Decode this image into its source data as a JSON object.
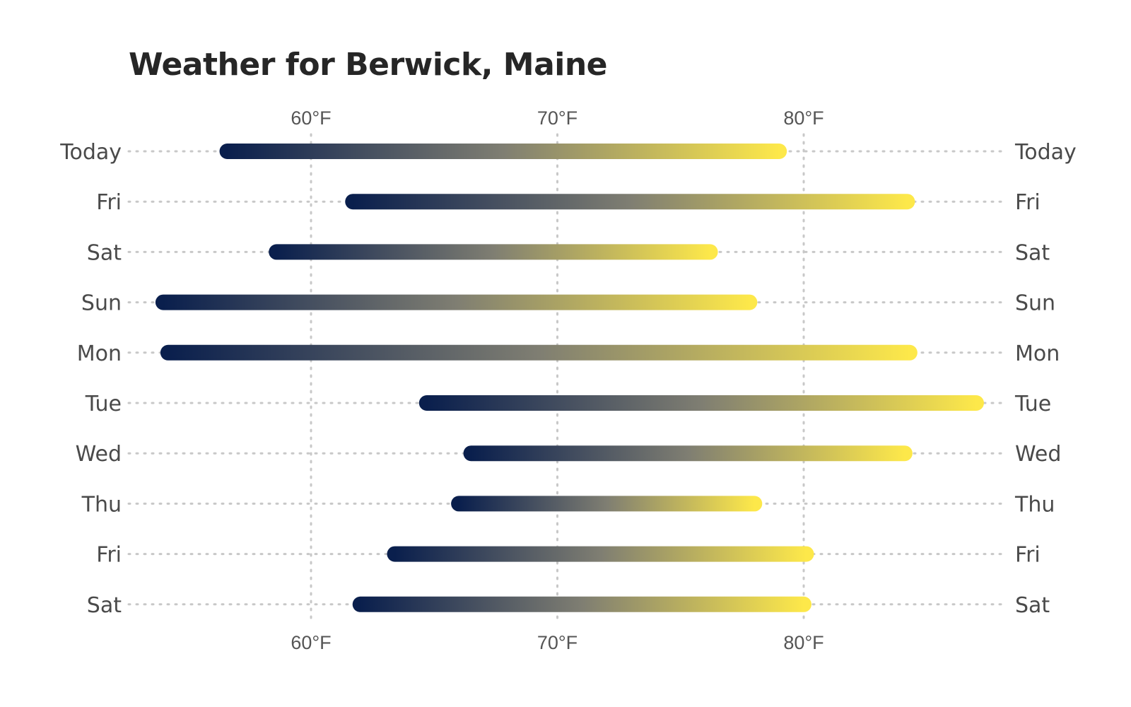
{
  "chart_data": {
    "type": "range-bar",
    "title": "Weather for Berwick, Maine",
    "unit": "°F",
    "xlim": [
      52,
      88
    ],
    "ticks": [
      {
        "value": 60,
        "label": "60°F"
      },
      {
        "value": 70,
        "label": "70°F"
      },
      {
        "value": 80,
        "label": "80°F"
      }
    ],
    "grid": true,
    "colors": {
      "low": "#0a1f4d",
      "mid": "#7f7e72",
      "high": "#fde84a"
    },
    "rows": [
      {
        "label": "Today",
        "low": 56.6,
        "high": 79.0
      },
      {
        "label": "Fri",
        "low": 61.7,
        "high": 84.2
      },
      {
        "label": "Sat",
        "low": 58.6,
        "high": 76.2
      },
      {
        "label": "Sun",
        "low": 54.0,
        "high": 77.8
      },
      {
        "label": "Mon",
        "low": 54.2,
        "high": 84.3
      },
      {
        "label": "Tue",
        "low": 64.7,
        "high": 87.0
      },
      {
        "label": "Wed",
        "low": 66.5,
        "high": 84.1
      },
      {
        "label": "Thu",
        "low": 66.0,
        "high": 78.0
      },
      {
        "label": "Fri",
        "low": 63.4,
        "high": 80.1
      },
      {
        "label": "Sat",
        "low": 62.0,
        "high": 80.0
      }
    ]
  }
}
